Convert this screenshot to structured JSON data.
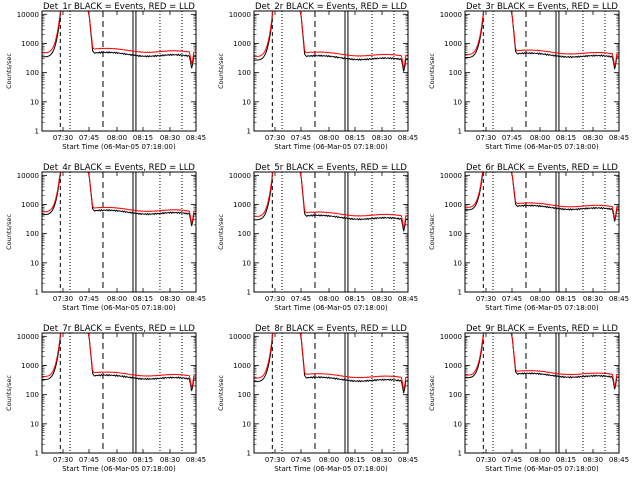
{
  "chart_data": [
    {
      "type": "line",
      "title": "Det_1r BLACK = Events, RED = LLD",
      "xlabel": "Start Time (06-Mar-05 07:18:00)",
      "ylabel": "Counts/sec",
      "log_y": true,
      "ylim": [
        1,
        13000
      ],
      "xlim": [
        0,
        100
      ],
      "xticks": [
        "07:30",
        "07:45",
        "08:00",
        "08:15",
        "08:30",
        "08:45"
      ],
      "yticks": [
        "1",
        "10",
        "100",
        "1000",
        "10000"
      ],
      "series": [
        {
          "name": "Events",
          "color": "#000000",
          "y_start": 350
        },
        {
          "name": "LLD",
          "color": "#ff0000",
          "y_start": 480
        }
      ]
    },
    {
      "type": "line",
      "title": "Det_2r BLACK = Events, RED = LLD",
      "xlabel": "Start Time (06-Mar-05 07:18:00)",
      "ylabel": "Counts/sec",
      "log_y": true,
      "ylim": [
        1,
        13000
      ],
      "xlim": [
        0,
        100
      ],
      "xticks": [
        "07:30",
        "07:45",
        "08:00",
        "08:15",
        "08:30",
        "08:45"
      ],
      "yticks": [
        "1",
        "10",
        "100",
        "1000",
        "10000"
      ],
      "series": [
        {
          "name": "Events",
          "color": "#000000",
          "y_start": 270
        },
        {
          "name": "LLD",
          "color": "#ff0000",
          "y_start": 360
        }
      ]
    },
    {
      "type": "line",
      "title": "Det_3r BLACK = Events, RED = LLD",
      "xlabel": "Start Time (06-Mar-05 07:18:00)",
      "ylabel": "Counts/sec",
      "log_y": true,
      "ylim": [
        1,
        13000
      ],
      "xlim": [
        0,
        100
      ],
      "xticks": [
        "07:30",
        "07:45",
        "08:00",
        "08:15",
        "08:30",
        "08:45"
      ],
      "yticks": [
        "1",
        "10",
        "100",
        "1000",
        "10000"
      ],
      "series": [
        {
          "name": "Events",
          "color": "#000000",
          "y_start": 330
        },
        {
          "name": "LLD",
          "color": "#ff0000",
          "y_start": 420
        }
      ]
    },
    {
      "type": "line",
      "title": "Det_4r BLACK = Events, RED = LLD",
      "xlabel": "Start Time (06-Mar-05 07:18:00)",
      "ylabel": "Counts/sec",
      "log_y": true,
      "ylim": [
        1,
        13000
      ],
      "xlim": [
        0,
        100
      ],
      "xticks": [
        "07:30",
        "07:45",
        "08:00",
        "08:15",
        "08:30",
        "08:45"
      ],
      "yticks": [
        "1",
        "10",
        "100",
        "1000",
        "10000"
      ],
      "series": [
        {
          "name": "Events",
          "color": "#000000",
          "y_start": 450
        },
        {
          "name": "LLD",
          "color": "#ff0000",
          "y_start": 560
        }
      ]
    },
    {
      "type": "line",
      "title": "Det_5r BLACK = Events, RED = LLD",
      "xlabel": "Start Time (06-Mar-05 07:18:00)",
      "ylabel": "Counts/sec",
      "log_y": true,
      "ylim": [
        1,
        13000
      ],
      "xlim": [
        0,
        100
      ],
      "xticks": [
        "07:30",
        "07:45",
        "08:00",
        "08:15",
        "08:30",
        "08:45"
      ],
      "yticks": [
        "1",
        "10",
        "100",
        "1000",
        "10000"
      ],
      "series": [
        {
          "name": "Events",
          "color": "#000000",
          "y_start": 300
        },
        {
          "name": "LLD",
          "color": "#ff0000",
          "y_start": 390
        }
      ]
    },
    {
      "type": "line",
      "title": "Det_6r BLACK = Events, RED = LLD",
      "xlabel": "Start Time (06-Mar-05 07:18:00)",
      "ylabel": "Counts/sec",
      "log_y": true,
      "ylim": [
        1,
        13000
      ],
      "xlim": [
        0,
        100
      ],
      "xticks": [
        "07:30",
        "07:45",
        "08:00",
        "08:15",
        "08:30",
        "08:45"
      ],
      "yticks": [
        "1",
        "10",
        "100",
        "1000",
        "10000"
      ],
      "series": [
        {
          "name": "Events",
          "color": "#000000",
          "y_start": 650
        },
        {
          "name": "LLD",
          "color": "#ff0000",
          "y_start": 800
        }
      ]
    },
    {
      "type": "line",
      "title": "Det_7r BLACK = Events, RED = LLD",
      "xlabel": "Start Time (06-Mar-05 07:18:00)",
      "ylabel": "Counts/sec",
      "log_y": true,
      "ylim": [
        1,
        13000
      ],
      "xlim": [
        0,
        100
      ],
      "xticks": [
        "07:30",
        "07:45",
        "08:00",
        "08:15",
        "08:30",
        "08:45"
      ],
      "yticks": [
        "1",
        "10",
        "100",
        "1000",
        "10000"
      ],
      "series": [
        {
          "name": "Events",
          "color": "#000000",
          "y_start": 330
        },
        {
          "name": "LLD",
          "color": "#ff0000",
          "y_start": 420
        }
      ]
    },
    {
      "type": "line",
      "title": "Det_8r BLACK = Events, RED = LLD",
      "xlabel": "Start Time (06-Mar-05 07:18:00)",
      "ylabel": "Counts/sec",
      "log_y": true,
      "ylim": [
        1,
        13000
      ],
      "xlim": [
        0,
        100
      ],
      "xticks": [
        "07:30",
        "07:45",
        "08:00",
        "08:15",
        "08:30",
        "08:45"
      ],
      "yticks": [
        "1",
        "10",
        "100",
        "1000",
        "10000"
      ],
      "series": [
        {
          "name": "Events",
          "color": "#000000",
          "y_start": 280
        },
        {
          "name": "LLD",
          "color": "#ff0000",
          "y_start": 370
        }
      ]
    },
    {
      "type": "line",
      "title": "Det_9r BLACK = Events, RED = LLD",
      "xlabel": "Start Time (06-Mar-05 07:18:00)",
      "ylabel": "Counts/sec",
      "log_y": true,
      "ylim": [
        1,
        13000
      ],
      "xlim": [
        0,
        100
      ],
      "xticks": [
        "07:30",
        "07:45",
        "08:00",
        "08:15",
        "08:30",
        "08:45"
      ],
      "yticks": [
        "1",
        "10",
        "100",
        "1000",
        "10000"
      ],
      "series": [
        {
          "name": "Events",
          "color": "#000000",
          "y_start": 380
        },
        {
          "name": "LLD",
          "color": "#ff0000",
          "y_start": 470
        }
      ]
    }
  ]
}
